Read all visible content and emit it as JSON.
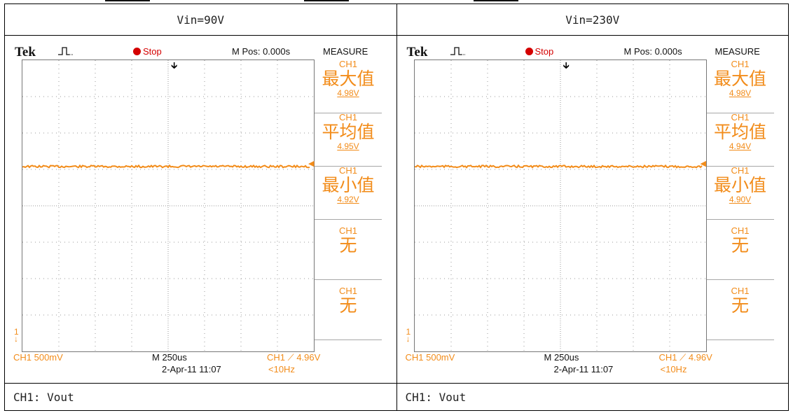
{
  "columns": [
    {
      "header": "Vin=90V",
      "caption": "CH1: Vout",
      "scope": {
        "brand": "Tek",
        "status": "Stop",
        "mpos": "M Pos: 0.000s",
        "menu_title": "MEASURE",
        "measurements": [
          {
            "channel": "CH1",
            "name": "最大值",
            "value": "4.98V"
          },
          {
            "channel": "CH1",
            "name": "平均值",
            "value": "4.95V"
          },
          {
            "channel": "CH1",
            "name": "最小值",
            "value": "4.92V"
          },
          {
            "channel": "CH1",
            "name": "无",
            "value": ""
          },
          {
            "channel": "CH1",
            "name": "无",
            "value": ""
          }
        ],
        "ch_scale": "CH1  500mV",
        "time_scale": "M 250us",
        "trigger": "CH1 ⟋ 4.96V",
        "date": "2-Apr-11 11:07",
        "freq": "<10Hz",
        "ground_marker": "1",
        "trace_level_fraction": 0.365,
        "trace_color": "#f28c1a"
      }
    },
    {
      "header": "Vin=230V",
      "caption": "CH1: Vout",
      "scope": {
        "brand": "Tek",
        "status": "Stop",
        "mpos": "M Pos: 0.000s",
        "menu_title": "MEASURE",
        "measurements": [
          {
            "channel": "CH1",
            "name": "最大值",
            "value": "4.98V"
          },
          {
            "channel": "CH1",
            "name": "平均值",
            "value": "4.94V"
          },
          {
            "channel": "CH1",
            "name": "最小值",
            "value": "4.90V"
          },
          {
            "channel": "CH1",
            "name": "无",
            "value": ""
          },
          {
            "channel": "CH1",
            "name": "无",
            "value": ""
          }
        ],
        "ch_scale": "CH1  500mV",
        "time_scale": "M 250us",
        "trigger": "CH1 ⟋ 4.96V",
        "date": "2-Apr-11 11:07",
        "freq": "<10Hz",
        "ground_marker": "1",
        "trace_level_fraction": 0.365,
        "trace_color": "#f28c1a"
      }
    }
  ],
  "colors": {
    "trace": "#f28c1a",
    "stop": "#d40000",
    "grid": "#9a9a9a"
  }
}
